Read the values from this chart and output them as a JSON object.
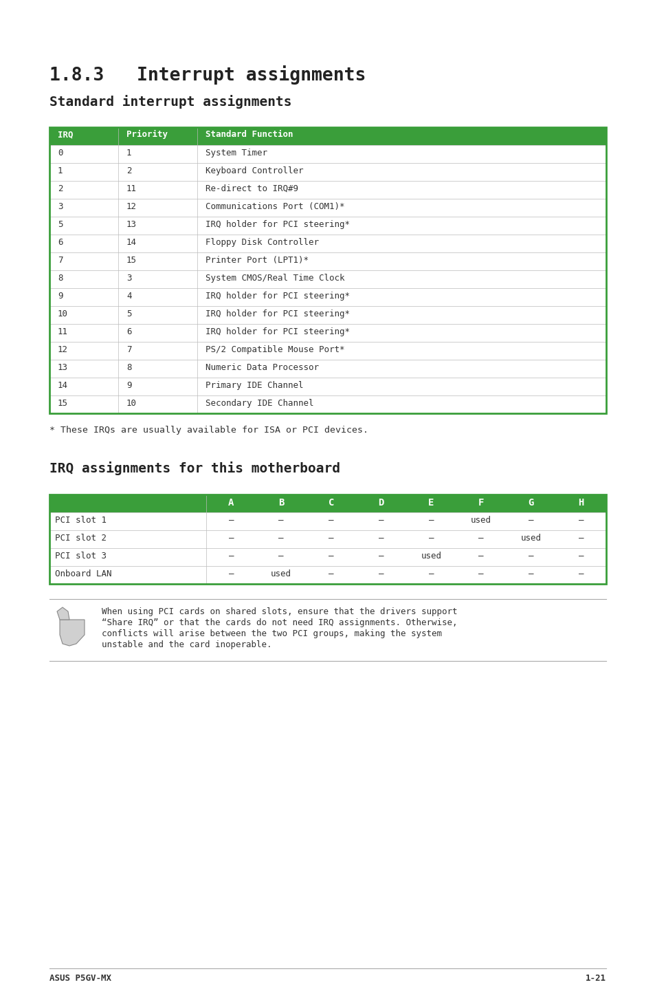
{
  "bg_color": "#ffffff",
  "title1": "1.8.3   Interrupt assignments",
  "subtitle1": "Standard interrupt assignments",
  "title2": "IRQ assignments for this motherboard",
  "footer_left": "ASUS P5GV-MX",
  "footer_right": "1-21",
  "header_color": "#3a9e3a",
  "header_text_color": "#ffffff",
  "table1_headers": [
    "IRQ",
    "Priority",
    "Standard Function"
  ],
  "table1_rows": [
    [
      "0",
      "1",
      "System Timer"
    ],
    [
      "1",
      "2",
      "Keyboard Controller"
    ],
    [
      "2",
      "11",
      "Re-direct to IRQ#9"
    ],
    [
      "3",
      "12",
      "Communications Port (COM1)*"
    ],
    [
      "5",
      "13",
      "IRQ holder for PCI steering*"
    ],
    [
      "6",
      "14",
      "Floppy Disk Controller"
    ],
    [
      "7",
      "15",
      "Printer Port (LPT1)*"
    ],
    [
      "8",
      "3",
      "System CMOS/Real Time Clock"
    ],
    [
      "9",
      "4",
      "IRQ holder for PCI steering*"
    ],
    [
      "10",
      "5",
      "IRQ holder for PCI steering*"
    ],
    [
      "11",
      "6",
      "IRQ holder for PCI steering*"
    ],
    [
      "12",
      "7",
      "PS/2 Compatible Mouse Port*"
    ],
    [
      "13",
      "8",
      "Numeric Data Processor"
    ],
    [
      "14",
      "9",
      "Primary IDE Channel"
    ],
    [
      "15",
      "10",
      "Secondary IDE Channel"
    ]
  ],
  "footnote": "* These IRQs are usually available for ISA or PCI devices.",
  "table2_headers": [
    "",
    "A",
    "B",
    "C",
    "D",
    "E",
    "F",
    "G",
    "H"
  ],
  "table2_rows": [
    [
      "PCI slot 1",
      "—",
      "—",
      "—",
      "—",
      "—",
      "used",
      "—",
      "—"
    ],
    [
      "PCI slot 2",
      "—",
      "—",
      "—",
      "—",
      "—",
      "—",
      "used",
      "—"
    ],
    [
      "PCI slot 3",
      "—",
      "—",
      "—",
      "—",
      "used",
      "—",
      "—",
      "—"
    ],
    [
      "Onboard LAN",
      "—",
      "used",
      "—",
      "—",
      "—",
      "—",
      "—",
      "—"
    ]
  ],
  "note_lines": [
    "When using PCI cards on shared slots, ensure that the drivers support",
    "“Share IRQ” or that the cards do not need IRQ assignments. Otherwise,",
    "conflicts will arise between the two PCI groups, making the system",
    "unstable and the card inoperable."
  ]
}
